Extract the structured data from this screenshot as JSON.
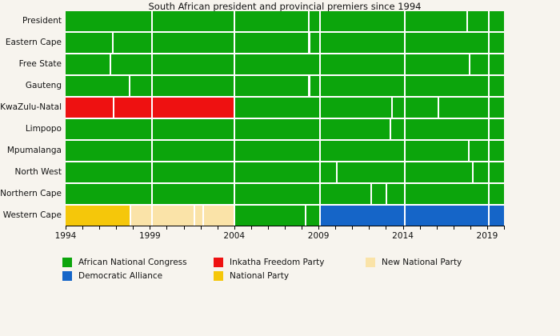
{
  "chart_data": {
    "type": "bar",
    "subtype": "horizontal_timeline_gantt",
    "title": "South African president and provincial premiers since 1994",
    "x_domain": [
      1994.35,
      2020.35
    ],
    "x_units": "year",
    "x_tick_labels": [
      "1994",
      "1999",
      "2004",
      "2009",
      "2014",
      "2019"
    ],
    "x_minor_tick_interval_years": 1,
    "grid": false,
    "legend_position": "bottom",
    "background_color": "#f7f4ee",
    "separator_color": "#ffffff",
    "axis_color": "#000000",
    "parties": {
      "ANC": {
        "label": "African National Congress",
        "color": "#0ca50c"
      },
      "DA": {
        "label": "Democratic Alliance",
        "color": "#1565c8"
      },
      "IFP": {
        "label": "Inkatha Freedom Party",
        "color": "#ee1111"
      },
      "NP": {
        "label": "National Party",
        "color": "#f5c70a"
      },
      "NNP": {
        "label": "New National Party",
        "color": "#fae3a8"
      }
    },
    "legend_order": [
      "ANC",
      "DA",
      "IFP",
      "NP",
      "NNP"
    ],
    "rows": [
      {
        "label": "President",
        "segments": [
          {
            "start": 1994.35,
            "end": 1999.45,
            "party": "ANC"
          },
          {
            "start": 1999.45,
            "end": 2004.3,
            "party": "ANC"
          },
          {
            "start": 2004.3,
            "end": 2008.73,
            "party": "ANC"
          },
          {
            "start": 2008.73,
            "end": 2009.37,
            "party": "ANC"
          },
          {
            "start": 2009.37,
            "end": 2014.4,
            "party": "ANC"
          },
          {
            "start": 2014.4,
            "end": 2018.12,
            "party": "ANC"
          },
          {
            "start": 2018.12,
            "end": 2019.4,
            "party": "ANC"
          },
          {
            "start": 2019.4,
            "end": 2020.35,
            "party": "ANC"
          }
        ]
      },
      {
        "label": "Eastern Cape",
        "segments": [
          {
            "start": 1994.35,
            "end": 1997.1,
            "party": "ANC"
          },
          {
            "start": 1997.1,
            "end": 1999.45,
            "party": "ANC"
          },
          {
            "start": 1999.45,
            "end": 2004.3,
            "party": "ANC"
          },
          {
            "start": 2004.3,
            "end": 2008.75,
            "party": "ANC"
          },
          {
            "start": 2008.75,
            "end": 2009.37,
            "party": "ANC"
          },
          {
            "start": 2009.37,
            "end": 2014.4,
            "party": "ANC"
          },
          {
            "start": 2014.4,
            "end": 2019.4,
            "party": "ANC"
          },
          {
            "start": 2019.4,
            "end": 2020.35,
            "party": "ANC"
          }
        ]
      },
      {
        "label": "Free State",
        "segments": [
          {
            "start": 1994.35,
            "end": 1996.95,
            "party": "ANC"
          },
          {
            "start": 1996.95,
            "end": 1999.45,
            "party": "ANC"
          },
          {
            "start": 1999.45,
            "end": 2004.3,
            "party": "ANC"
          },
          {
            "start": 2004.3,
            "end": 2009.37,
            "party": "ANC"
          },
          {
            "start": 2009.37,
            "end": 2014.4,
            "party": "ANC"
          },
          {
            "start": 2014.4,
            "end": 2018.27,
            "party": "ANC"
          },
          {
            "start": 2018.27,
            "end": 2019.4,
            "party": "ANC"
          },
          {
            "start": 2019.4,
            "end": 2020.35,
            "party": "ANC"
          }
        ]
      },
      {
        "label": "Gauteng",
        "segments": [
          {
            "start": 1994.35,
            "end": 1998.1,
            "party": "ANC"
          },
          {
            "start": 1998.1,
            "end": 1999.45,
            "party": "ANC"
          },
          {
            "start": 1999.45,
            "end": 2004.3,
            "party": "ANC"
          },
          {
            "start": 2004.3,
            "end": 2008.75,
            "party": "ANC"
          },
          {
            "start": 2008.75,
            "end": 2009.37,
            "party": "ANC"
          },
          {
            "start": 2009.37,
            "end": 2014.4,
            "party": "ANC"
          },
          {
            "start": 2014.4,
            "end": 2019.4,
            "party": "ANC"
          },
          {
            "start": 2019.4,
            "end": 2020.35,
            "party": "ANC"
          }
        ]
      },
      {
        "label": "KwaZulu-Natal",
        "segments": [
          {
            "start": 1994.35,
            "end": 1997.15,
            "party": "IFP"
          },
          {
            "start": 1997.15,
            "end": 1999.45,
            "party": "IFP"
          },
          {
            "start": 1999.45,
            "end": 2004.3,
            "party": "IFP"
          },
          {
            "start": 2004.3,
            "end": 2009.37,
            "party": "ANC"
          },
          {
            "start": 2009.37,
            "end": 2013.65,
            "party": "ANC"
          },
          {
            "start": 2013.65,
            "end": 2014.4,
            "party": "ANC"
          },
          {
            "start": 2014.4,
            "end": 2016.4,
            "party": "ANC"
          },
          {
            "start": 2016.4,
            "end": 2019.4,
            "party": "ANC"
          },
          {
            "start": 2019.4,
            "end": 2020.35,
            "party": "ANC"
          }
        ]
      },
      {
        "label": "Limpopo",
        "segments": [
          {
            "start": 1994.35,
            "end": 1999.45,
            "party": "ANC"
          },
          {
            "start": 1999.45,
            "end": 2004.3,
            "party": "ANC"
          },
          {
            "start": 2004.3,
            "end": 2009.37,
            "party": "ANC"
          },
          {
            "start": 2009.37,
            "end": 2013.55,
            "party": "ANC"
          },
          {
            "start": 2013.55,
            "end": 2014.4,
            "party": "ANC"
          },
          {
            "start": 2014.4,
            "end": 2019.4,
            "party": "ANC"
          },
          {
            "start": 2019.4,
            "end": 2020.35,
            "party": "ANC"
          }
        ]
      },
      {
        "label": "Mpumalanga",
        "segments": [
          {
            "start": 1994.35,
            "end": 1999.45,
            "party": "ANC"
          },
          {
            "start": 1999.45,
            "end": 2004.3,
            "party": "ANC"
          },
          {
            "start": 2004.3,
            "end": 2009.37,
            "party": "ANC"
          },
          {
            "start": 2009.37,
            "end": 2014.4,
            "party": "ANC"
          },
          {
            "start": 2014.4,
            "end": 2018.2,
            "party": "ANC"
          },
          {
            "start": 2018.2,
            "end": 2019.4,
            "party": "ANC"
          },
          {
            "start": 2019.4,
            "end": 2020.35,
            "party": "ANC"
          }
        ]
      },
      {
        "label": "North West",
        "segments": [
          {
            "start": 1994.35,
            "end": 1999.45,
            "party": "ANC"
          },
          {
            "start": 1999.45,
            "end": 2004.3,
            "party": "ANC"
          },
          {
            "start": 2004.3,
            "end": 2009.37,
            "party": "ANC"
          },
          {
            "start": 2009.37,
            "end": 2010.4,
            "party": "ANC"
          },
          {
            "start": 2010.4,
            "end": 2014.4,
            "party": "ANC"
          },
          {
            "start": 2014.4,
            "end": 2018.45,
            "party": "ANC"
          },
          {
            "start": 2018.45,
            "end": 2019.4,
            "party": "ANC"
          },
          {
            "start": 2019.4,
            "end": 2020.35,
            "party": "ANC"
          }
        ]
      },
      {
        "label": "Northern Cape",
        "segments": [
          {
            "start": 1994.35,
            "end": 1999.45,
            "party": "ANC"
          },
          {
            "start": 1999.45,
            "end": 2004.3,
            "party": "ANC"
          },
          {
            "start": 2004.3,
            "end": 2009.37,
            "party": "ANC"
          },
          {
            "start": 2009.37,
            "end": 2012.42,
            "party": "ANC"
          },
          {
            "start": 2012.42,
            "end": 2013.35,
            "party": "ANC"
          },
          {
            "start": 2013.35,
            "end": 2014.4,
            "party": "ANC"
          },
          {
            "start": 2014.4,
            "end": 2019.4,
            "party": "ANC"
          },
          {
            "start": 2019.4,
            "end": 2020.35,
            "party": "ANC"
          }
        ]
      },
      {
        "label": "Western Cape",
        "segments": [
          {
            "start": 1994.35,
            "end": 1998.15,
            "party": "NP"
          },
          {
            "start": 1998.15,
            "end": 1999.45,
            "party": "NNP"
          },
          {
            "start": 1999.45,
            "end": 2001.92,
            "party": "NNP"
          },
          {
            "start": 2001.92,
            "end": 2002.45,
            "party": "NNP"
          },
          {
            "start": 2002.45,
            "end": 2004.3,
            "party": "NNP"
          },
          {
            "start": 2004.3,
            "end": 2008.55,
            "party": "ANC"
          },
          {
            "start": 2008.55,
            "end": 2009.37,
            "party": "ANC"
          },
          {
            "start": 2009.37,
            "end": 2014.4,
            "party": "DA"
          },
          {
            "start": 2014.4,
            "end": 2019.4,
            "party": "DA"
          },
          {
            "start": 2019.4,
            "end": 2020.35,
            "party": "DA"
          }
        ]
      }
    ]
  }
}
